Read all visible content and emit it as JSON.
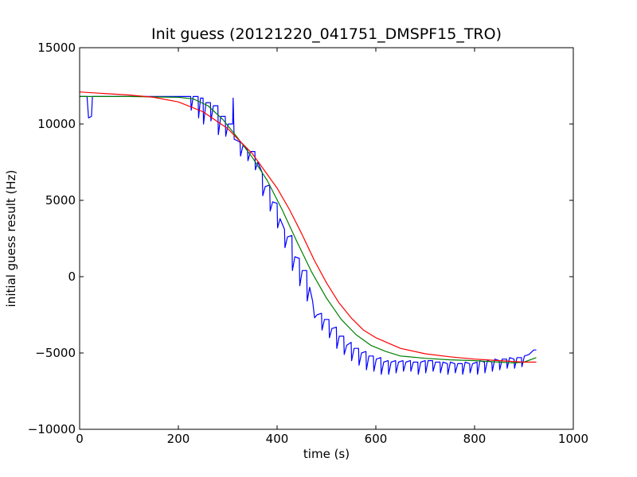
{
  "chart_data": {
    "type": "line",
    "title": "Init guess (20121220_041751_DMSPF15_TRO)",
    "xlabel": "time (s)",
    "ylabel": "initial guess result (Hz)",
    "xlim": [
      0,
      1000
    ],
    "ylim": [
      -10000,
      15000
    ],
    "xticks": [
      "0",
      "200",
      "400",
      "600",
      "800",
      "1000"
    ],
    "yticks": [
      "−10000",
      "−5000",
      "0",
      "5000",
      "10000",
      "15000"
    ],
    "grid": false,
    "legend": "none",
    "series": [
      {
        "color": "#0000ff",
        "points": [
          [
            0,
            11800
          ],
          [
            15,
            11800
          ],
          [
            18,
            10400
          ],
          [
            24,
            10500
          ],
          [
            26,
            11800
          ],
          [
            100,
            11800
          ],
          [
            200,
            11800
          ],
          [
            225,
            11800
          ],
          [
            226,
            10900
          ],
          [
            230,
            11800
          ],
          [
            240,
            11800
          ],
          [
            241,
            10400
          ],
          [
            245,
            11700
          ],
          [
            250,
            11700
          ],
          [
            251,
            10000
          ],
          [
            256,
            11400
          ],
          [
            265,
            11400
          ],
          [
            266,
            10200
          ],
          [
            271,
            11200
          ],
          [
            280,
            11200
          ],
          [
            281,
            9300
          ],
          [
            286,
            10500
          ],
          [
            295,
            10500
          ],
          [
            296,
            9200
          ],
          [
            301,
            10000
          ],
          [
            310,
            10000
          ],
          [
            311,
            11700
          ],
          [
            313,
            9000
          ],
          [
            320,
            8900
          ],
          [
            325,
            8800
          ],
          [
            326,
            7900
          ],
          [
            331,
            8600
          ],
          [
            340,
            8300
          ],
          [
            341,
            7600
          ],
          [
            346,
            8200
          ],
          [
            355,
            8200
          ],
          [
            356,
            7000
          ],
          [
            361,
            7500
          ],
          [
            370,
            6800
          ],
          [
            371,
            5300
          ],
          [
            376,
            5900
          ],
          [
            385,
            6000
          ],
          [
            386,
            4300
          ],
          [
            391,
            4900
          ],
          [
            400,
            4800
          ],
          [
            401,
            3200
          ],
          [
            406,
            3800
          ],
          [
            415,
            3100
          ],
          [
            416,
            1900
          ],
          [
            421,
            2600
          ],
          [
            430,
            2700
          ],
          [
            431,
            400
          ],
          [
            436,
            1300
          ],
          [
            445,
            1200
          ],
          [
            446,
            -600
          ],
          [
            451,
            400
          ],
          [
            460,
            400
          ],
          [
            461,
            -1600
          ],
          [
            466,
            -700
          ],
          [
            472,
            -1600
          ],
          [
            476,
            -2700
          ],
          [
            481,
            -2500
          ],
          [
            490,
            -2400
          ],
          [
            491,
            -3500
          ],
          [
            496,
            -2800
          ],
          [
            505,
            -2800
          ],
          [
            506,
            -4000
          ],
          [
            511,
            -3400
          ],
          [
            520,
            -3300
          ],
          [
            521,
            -4700
          ],
          [
            526,
            -3900
          ],
          [
            535,
            -3900
          ],
          [
            536,
            -5100
          ],
          [
            541,
            -4500
          ],
          [
            550,
            -4300
          ],
          [
            551,
            -5500
          ],
          [
            556,
            -4700
          ],
          [
            565,
            -4700
          ],
          [
            566,
            -5800
          ],
          [
            571,
            -5000
          ],
          [
            580,
            -4900
          ],
          [
            581,
            -6100
          ],
          [
            586,
            -5200
          ],
          [
            595,
            -5200
          ],
          [
            596,
            -6200
          ],
          [
            601,
            -5400
          ],
          [
            610,
            -5300
          ],
          [
            611,
            -6400
          ],
          [
            616,
            -5600
          ],
          [
            625,
            -5500
          ],
          [
            626,
            -6400
          ],
          [
            631,
            -5600
          ],
          [
            640,
            -5500
          ],
          [
            641,
            -6300
          ],
          [
            646,
            -5600
          ],
          [
            655,
            -5500
          ],
          [
            656,
            -6200
          ],
          [
            661,
            -5600
          ],
          [
            670,
            -5500
          ],
          [
            671,
            -6200
          ],
          [
            676,
            -5600
          ],
          [
            685,
            -5600
          ],
          [
            686,
            -6400
          ],
          [
            691,
            -5600
          ],
          [
            700,
            -5500
          ],
          [
            701,
            -6300
          ],
          [
            706,
            -5500
          ],
          [
            715,
            -5500
          ],
          [
            716,
            -6200
          ],
          [
            721,
            -5600
          ],
          [
            730,
            -5600
          ],
          [
            731,
            -6300
          ],
          [
            736,
            -5600
          ],
          [
            745,
            -5700
          ],
          [
            746,
            -6400
          ],
          [
            751,
            -5600
          ],
          [
            760,
            -5700
          ],
          [
            761,
            -6300
          ],
          [
            766,
            -5700
          ],
          [
            775,
            -5700
          ],
          [
            776,
            -6400
          ],
          [
            781,
            -5600
          ],
          [
            790,
            -5700
          ],
          [
            791,
            -6300
          ],
          [
            796,
            -5700
          ],
          [
            805,
            -5600
          ],
          [
            806,
            -6400
          ],
          [
            811,
            -5500
          ],
          [
            820,
            -5600
          ],
          [
            821,
            -6300
          ],
          [
            826,
            -5500
          ],
          [
            835,
            -5600
          ],
          [
            836,
            -6200
          ],
          [
            841,
            -5400
          ],
          [
            850,
            -5500
          ],
          [
            851,
            -6100
          ],
          [
            856,
            -5400
          ],
          [
            865,
            -5400
          ],
          [
            866,
            -6000
          ],
          [
            871,
            -5300
          ],
          [
            880,
            -5400
          ],
          [
            881,
            -6000
          ],
          [
            886,
            -5300
          ],
          [
            895,
            -5300
          ],
          [
            896,
            -5900
          ],
          [
            901,
            -5200
          ],
          [
            910,
            -5100
          ],
          [
            920,
            -4800
          ],
          [
            925,
            -4800
          ]
        ]
      },
      {
        "color": "#007f00",
        "points": [
          [
            0,
            11800
          ],
          [
            100,
            11800
          ],
          [
            200,
            11750
          ],
          [
            230,
            11650
          ],
          [
            260,
            11200
          ],
          [
            290,
            10300
          ],
          [
            320,
            9100
          ],
          [
            350,
            7800
          ],
          [
            380,
            6300
          ],
          [
            410,
            4400
          ],
          [
            440,
            2300
          ],
          [
            470,
            300
          ],
          [
            500,
            -1400
          ],
          [
            530,
            -2800
          ],
          [
            560,
            -3800
          ],
          [
            590,
            -4500
          ],
          [
            620,
            -4900
          ],
          [
            650,
            -5200
          ],
          [
            700,
            -5350
          ],
          [
            750,
            -5450
          ],
          [
            800,
            -5500
          ],
          [
            850,
            -5600
          ],
          [
            880,
            -5650
          ],
          [
            900,
            -5600
          ],
          [
            925,
            -5300
          ]
        ]
      },
      {
        "color": "#ff0000",
        "points": [
          [
            0,
            12100
          ],
          [
            50,
            12000
          ],
          [
            100,
            11900
          ],
          [
            150,
            11750
          ],
          [
            200,
            11450
          ],
          [
            250,
            10800
          ],
          [
            300,
            9700
          ],
          [
            350,
            8050
          ],
          [
            400,
            5800
          ],
          [
            425,
            4400
          ],
          [
            450,
            2800
          ],
          [
            475,
            1100
          ],
          [
            500,
            -400
          ],
          [
            525,
            -1700
          ],
          [
            550,
            -2700
          ],
          [
            575,
            -3500
          ],
          [
            600,
            -4000
          ],
          [
            650,
            -4700
          ],
          [
            700,
            -5050
          ],
          [
            750,
            -5250
          ],
          [
            800,
            -5400
          ],
          [
            850,
            -5500
          ],
          [
            900,
            -5600
          ],
          [
            925,
            -5600
          ]
        ]
      }
    ]
  }
}
